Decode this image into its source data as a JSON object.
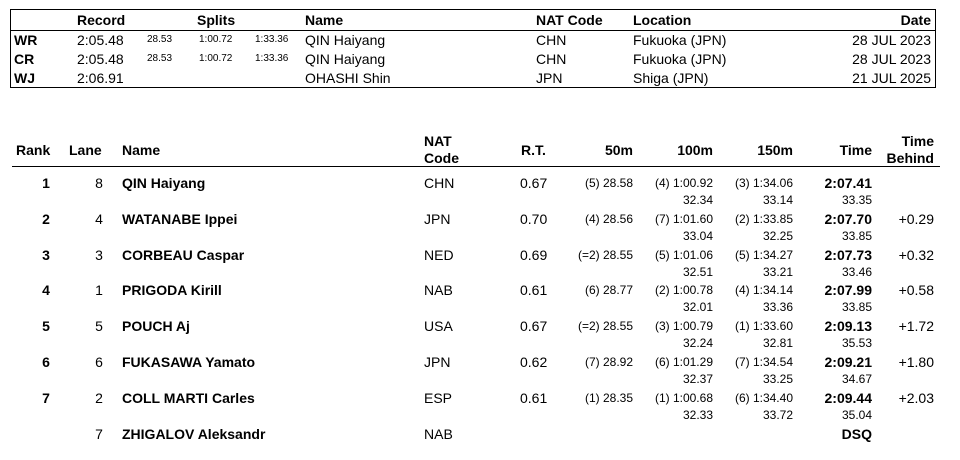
{
  "records": {
    "headers": {
      "record": "Record",
      "splits": "Splits",
      "name": "Name",
      "nat": "NAT Code",
      "location": "Location",
      "date": "Date"
    },
    "rows": [
      {
        "type": "WR",
        "time": "2:05.48",
        "splits": [
          "28.53",
          "1:00.72",
          "1:33.36"
        ],
        "name": "QIN Haiyang",
        "nat": "CHN",
        "location": "Fukuoka (JPN)",
        "date": "28 JUL 2023"
      },
      {
        "type": "CR",
        "time": "2:05.48",
        "splits": [
          "28.53",
          "1:00.72",
          "1:33.36"
        ],
        "name": "QIN Haiyang",
        "nat": "CHN",
        "location": "Fukuoka (JPN)",
        "date": "28 JUL 2023"
      },
      {
        "type": "WJ",
        "time": "2:06.91",
        "splits": [
          "",
          "",
          ""
        ],
        "name": "OHASHI Shin",
        "nat": "JPN",
        "location": "Shiga (JPN)",
        "date": "21 JUL 2025"
      }
    ]
  },
  "results": {
    "headers": {
      "rank": "Rank",
      "lane": "Lane",
      "name": "Name",
      "nat_1": "NAT",
      "nat_2": "Code",
      "rt": "R.T.",
      "m50": "50m",
      "m100": "100m",
      "m150": "150m",
      "time": "Time",
      "behind_1": "Time",
      "behind_2": "Behind"
    },
    "rows": [
      {
        "rank": "1",
        "lane": "8",
        "name": "QIN Haiyang",
        "nat": "CHN",
        "rt": "0.67",
        "s50": "(5) 28.58",
        "s100": "(4) 1:00.92",
        "s100b": "32.34",
        "s150": "(3) 1:34.06",
        "s150b": "33.14",
        "time": "2:07.41",
        "timeb": "33.35",
        "behind": ""
      },
      {
        "rank": "2",
        "lane": "4",
        "name": "WATANABE Ippei",
        "nat": "JPN",
        "rt": "0.70",
        "s50": "(4) 28.56",
        "s100": "(7) 1:01.60",
        "s100b": "33.04",
        "s150": "(2) 1:33.85",
        "s150b": "32.25",
        "time": "2:07.70",
        "timeb": "33.85",
        "behind": "+0.29"
      },
      {
        "rank": "3",
        "lane": "3",
        "name": "CORBEAU Caspar",
        "nat": "NED",
        "rt": "0.69",
        "s50": "(=2) 28.55",
        "s100": "(5) 1:01.06",
        "s100b": "32.51",
        "s150": "(5) 1:34.27",
        "s150b": "33.21",
        "time": "2:07.73",
        "timeb": "33.46",
        "behind": "+0.32"
      },
      {
        "rank": "4",
        "lane": "1",
        "name": "PRIGODA Kirill",
        "nat": "NAB",
        "rt": "0.61",
        "s50": "(6) 28.77",
        "s100": "(2) 1:00.78",
        "s100b": "32.01",
        "s150": "(4) 1:34.14",
        "s150b": "33.36",
        "time": "2:07.99",
        "timeb": "33.85",
        "behind": "+0.58"
      },
      {
        "rank": "5",
        "lane": "5",
        "name": "POUCH Aj",
        "nat": "USA",
        "rt": "0.67",
        "s50": "(=2) 28.55",
        "s100": "(3) 1:00.79",
        "s100b": "32.24",
        "s150": "(1) 1:33.60",
        "s150b": "32.81",
        "time": "2:09.13",
        "timeb": "35.53",
        "behind": "+1.72"
      },
      {
        "rank": "6",
        "lane": "6",
        "name": "FUKASAWA Yamato",
        "nat": "JPN",
        "rt": "0.62",
        "s50": "(7) 28.92",
        "s100": "(6) 1:01.29",
        "s100b": "32.37",
        "s150": "(7) 1:34.54",
        "s150b": "33.25",
        "time": "2:09.21",
        "timeb": "34.67",
        "behind": "+1.80"
      },
      {
        "rank": "7",
        "lane": "2",
        "name": "COLL MARTI Carles",
        "nat": "ESP",
        "rt": "0.61",
        "s50": "(1) 28.35",
        "s100": "(1) 1:00.68",
        "s100b": "32.33",
        "s150": "(6) 1:34.40",
        "s150b": "33.72",
        "time": "2:09.44",
        "timeb": "35.04",
        "behind": "+2.03"
      },
      {
        "rank": "",
        "lane": "7",
        "name": "ZHIGALOV Aleksandr",
        "nat": "NAB",
        "rt": "",
        "s50": "",
        "s100": "",
        "s100b": "",
        "s150": "",
        "s150b": "",
        "time": "DSQ",
        "timeb": "",
        "behind": ""
      }
    ]
  }
}
